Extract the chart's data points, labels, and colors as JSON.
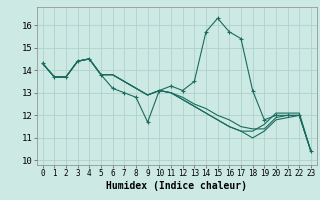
{
  "title": "",
  "xlabel": "Humidex (Indice chaleur)",
  "ylabel": "",
  "background_color": "#cce9e4",
  "grid_color": "#b0d0cc",
  "line_color": "#1a6b5e",
  "xlim": [
    -0.5,
    23.5
  ],
  "ylim": [
    9.8,
    16.8
  ],
  "yticks": [
    10,
    11,
    12,
    13,
    14,
    15,
    16
  ],
  "xticks": [
    0,
    1,
    2,
    3,
    4,
    5,
    6,
    7,
    8,
    9,
    10,
    11,
    12,
    13,
    14,
    15,
    16,
    17,
    18,
    19,
    20,
    21,
    22,
    23
  ],
  "series": [
    [
      14.3,
      13.7,
      13.7,
      14.4,
      14.5,
      13.8,
      13.2,
      13.0,
      12.8,
      11.7,
      13.1,
      13.3,
      13.1,
      13.5,
      15.7,
      16.3,
      15.7,
      15.4,
      13.1,
      11.8,
      12.0,
      12.0,
      12.0,
      10.4
    ],
    [
      14.3,
      13.7,
      13.7,
      14.4,
      14.5,
      13.8,
      13.8,
      13.5,
      13.2,
      12.9,
      13.1,
      13.0,
      12.8,
      12.5,
      12.3,
      12.0,
      11.8,
      11.5,
      11.4,
      11.4,
      11.9,
      12.0,
      12.0,
      10.4
    ],
    [
      14.3,
      13.7,
      13.7,
      14.4,
      14.5,
      13.8,
      13.8,
      13.5,
      13.2,
      12.9,
      13.1,
      13.0,
      12.7,
      12.4,
      12.1,
      11.8,
      11.5,
      11.3,
      11.3,
      11.6,
      12.1,
      12.1,
      12.1,
      10.4
    ],
    [
      14.3,
      13.7,
      13.7,
      14.4,
      14.5,
      13.8,
      13.8,
      13.5,
      13.2,
      12.9,
      13.1,
      13.0,
      12.7,
      12.4,
      12.1,
      11.8,
      11.5,
      11.3,
      11.0,
      11.3,
      11.8,
      11.9,
      12.0,
      10.4
    ]
  ]
}
